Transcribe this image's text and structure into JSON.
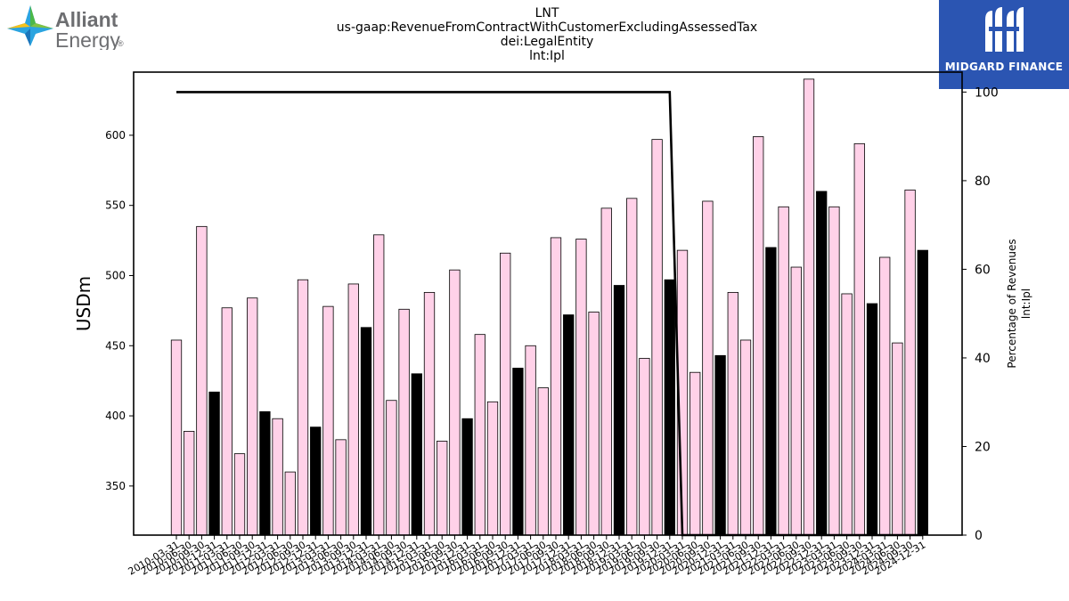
{
  "logos": {
    "left": {
      "name": "Alliant Energy",
      "line1": "Alliant",
      "line2": "Energy",
      "trademark": "®"
    },
    "right": {
      "name": "MIDGARD FINANCE"
    }
  },
  "chart_data": {
    "type": "bar",
    "title_lines": [
      "LNT",
      "us-gaap:RevenueFromContractWithCustomerExcludingAssessedTax",
      "dei:LegalEntity",
      "lnt:Ipl"
    ],
    "ylabel": "USDm",
    "ylabel_right": [
      "Percentage of Revenues",
      "lnt:Ipl"
    ],
    "ylim": [
      315,
      645
    ],
    "yticks": [
      350,
      400,
      450,
      500,
      550,
      600
    ],
    "ylim_right": [
      0,
      104.5
    ],
    "yticks_right": [
      0,
      20,
      40,
      60,
      80,
      100
    ],
    "colors": {
      "bar_light": "#ffd1e8",
      "bar_dark": "#000000",
      "line": "#000000"
    },
    "categories": [
      "2010-03-31",
      "2010-06-30",
      "2010-09-30",
      "2010-12-31",
      "2011-03-31",
      "2011-06-30",
      "2011-09-30",
      "2011-12-31",
      "2012-03-31",
      "2012-06-30",
      "2012-09-30",
      "2012-12-31",
      "2013-03-31",
      "2013-06-30",
      "2013-09-30",
      "2013-12-31",
      "2014-03-31",
      "2014-06-30",
      "2014-09-30",
      "2014-12-31",
      "2015-03-31",
      "2015-06-30",
      "2015-09-30",
      "2015-12-31",
      "2016-03-31",
      "2016-06-30",
      "2016-09-30",
      "2016-12-31",
      "2017-03-31",
      "2017-06-30",
      "2017-09-30",
      "2017-12-31",
      "2018-03-31",
      "2018-06-30",
      "2018-09-30",
      "2018-12-31",
      "2019-03-31",
      "2019-06-30",
      "2019-09-30",
      "2019-12-31",
      "2020-03-31",
      "2020-06-30",
      "2020-09-30",
      "2020-12-31",
      "2021-03-31",
      "2021-06-30",
      "2021-09-30",
      "2021-12-31",
      "2022-03-31",
      "2022-06-30",
      "2022-09-30",
      "2022-12-31",
      "2023-03-31",
      "2023-06-30",
      "2023-09-30",
      "2023-12-31",
      "2024-03-31",
      "2024-06-30",
      "2024-09-30",
      "2024-12-31"
    ],
    "series": [
      {
        "kind": "bar",
        "values": [
          454,
          389,
          535,
          417,
          477,
          373,
          484,
          403,
          398,
          360,
          497,
          392,
          478,
          383,
          494,
          463,
          529,
          411,
          476,
          430,
          488,
          382,
          504,
          398,
          458,
          410,
          516,
          434,
          450,
          420,
          527,
          472,
          526,
          474,
          548,
          493,
          555,
          441,
          597,
          497,
          518,
          431,
          553,
          443,
          488,
          454,
          599,
          520,
          549,
          506,
          640,
          560,
          549,
          487,
          594,
          480,
          513,
          452,
          561,
          518
        ]
      },
      {
        "kind": "line",
        "axis": "right",
        "values": [
          100,
          100,
          100,
          100,
          100,
          100,
          100,
          100,
          100,
          100,
          100,
          100,
          100,
          100,
          100,
          100,
          100,
          100,
          100,
          100,
          100,
          100,
          100,
          100,
          100,
          100,
          100,
          100,
          100,
          100,
          100,
          100,
          100,
          100,
          100,
          100,
          100,
          100,
          100,
          100,
          0,
          0,
          0,
          0,
          0,
          0,
          0,
          0,
          0,
          0,
          0,
          0,
          0,
          0,
          0,
          0,
          0,
          0,
          0,
          0
        ]
      }
    ],
    "grid": false,
    "legend": "none"
  }
}
